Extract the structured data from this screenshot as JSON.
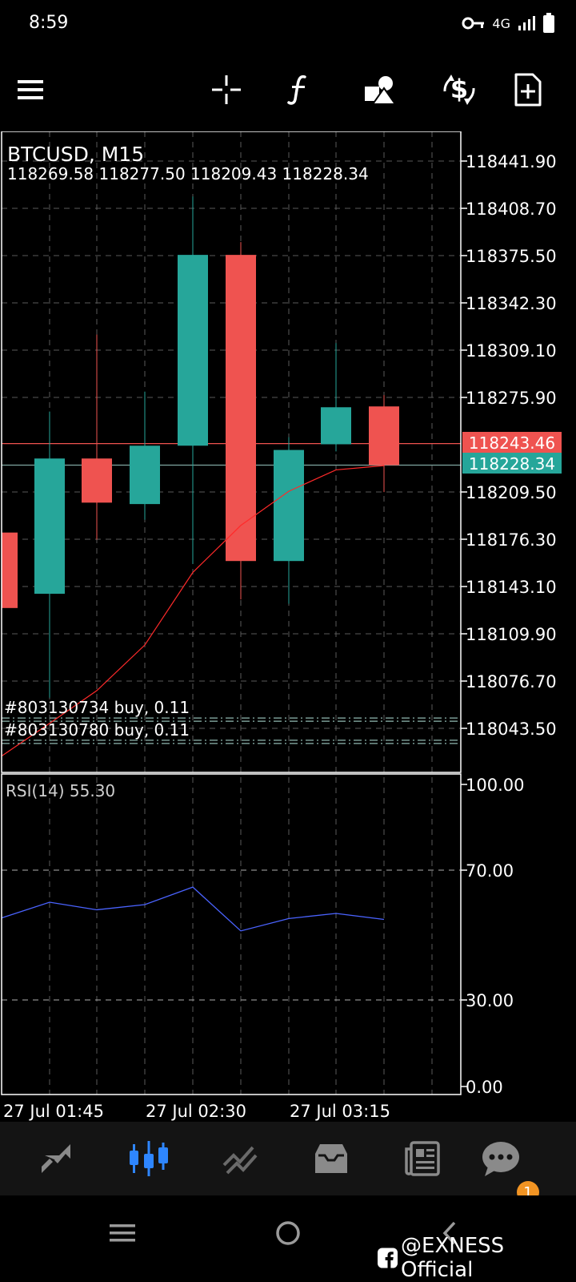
{
  "status_bar": {
    "time": "8:59",
    "network": "4G",
    "icons": [
      "vpn-key-icon",
      "signal-icon",
      "battery-icon"
    ]
  },
  "toolbar": {
    "icons": [
      "menu-icon",
      "crosshair-icon",
      "indicators-icon",
      "objects-icon",
      "trade-icon",
      "new-order-icon"
    ]
  },
  "chart": {
    "symbol_title": "BTCUSD, M15",
    "ohlc_line": "118269.58 118277.50 118209.43 118228.34",
    "ask_label": "118243.46",
    "bid_label": "118228.34",
    "ask_value": 118243.46,
    "bid_value": 118228.34,
    "price_axis": [
      "118441.90",
      "118408.70",
      "118375.50",
      "118342.30",
      "118309.10",
      "118275.90",
      "118209.50",
      "118176.30",
      "118143.10",
      "118109.90",
      "118076.70",
      "118043.50"
    ],
    "positions": [
      {
        "label": "#803130734 buy, 0.11",
        "price": 118049.6
      },
      {
        "label": "#803130780 buy, 0.11",
        "price": 118034.0
      }
    ],
    "time_axis": [
      "27 Jul 01:45",
      "27 Jul 02:30",
      "27 Jul 03:15"
    ],
    "colors": {
      "bull": "#26a69a",
      "bear": "#ef5350",
      "ma": "#ff2a2a",
      "rsi": "#4a63ff",
      "grid": "#5a5a5a"
    }
  },
  "chart_data": [
    {
      "type": "candlestick",
      "title": "BTCUSD, M15",
      "price_range": [
        118021.5,
        118461.5
      ],
      "candles": [
        {
          "o": 118181.0,
          "h": 118200.0,
          "l": 118110.0,
          "c": 118128.0
        },
        {
          "o": 118138.0,
          "h": 118266.0,
          "l": 118065.0,
          "c": 118233.0
        },
        {
          "o": 118233.0,
          "h": 118320.0,
          "l": 118176.0,
          "c": 118202.0
        },
        {
          "o": 118201.0,
          "h": 118280.0,
          "l": 118190.0,
          "c": 118242.0
        },
        {
          "o": 118242.0,
          "h": 118417.0,
          "l": 118159.0,
          "c": 118376.0
        },
        {
          "o": 118376.0,
          "h": 118385.0,
          "l": 118134.0,
          "c": 118161.0
        },
        {
          "o": 118161.0,
          "h": 118248.0,
          "l": 118131.0,
          "c": 118239.0
        },
        {
          "o": 118243.0,
          "h": 118314.0,
          "l": 118238.0,
          "c": 118269.0
        },
        {
          "o": 118269.58,
          "h": 118277.5,
          "l": 118209.43,
          "c": 118228.34
        }
      ],
      "moving_average": [
        118024.0,
        118047.0,
        118070.0,
        118102.0,
        118153.0,
        118186.0,
        118210.0,
        118225.0,
        118228.0
      ]
    },
    {
      "type": "line",
      "title": "RSI(14) 55.30",
      "y_axis": [
        "100.00",
        "70.00",
        "30.00",
        "0.00"
      ],
      "ylim": [
        0,
        100
      ],
      "levels": [
        70,
        30
      ],
      "values": [
        55.8,
        61.0,
        58.5,
        60.2,
        66.0,
        51.5,
        55.6,
        57.3,
        55.3
      ]
    }
  ],
  "bottom_nav": {
    "icons": [
      "quotes-icon",
      "chart-icon",
      "trade-history-icon",
      "inbox-icon",
      "news-icon",
      "messages-icon"
    ],
    "badge": "1"
  },
  "system_nav": {
    "icons": [
      "recent-apps-icon",
      "home-icon",
      "back-icon"
    ]
  },
  "watermark": "@EXNESS Official"
}
